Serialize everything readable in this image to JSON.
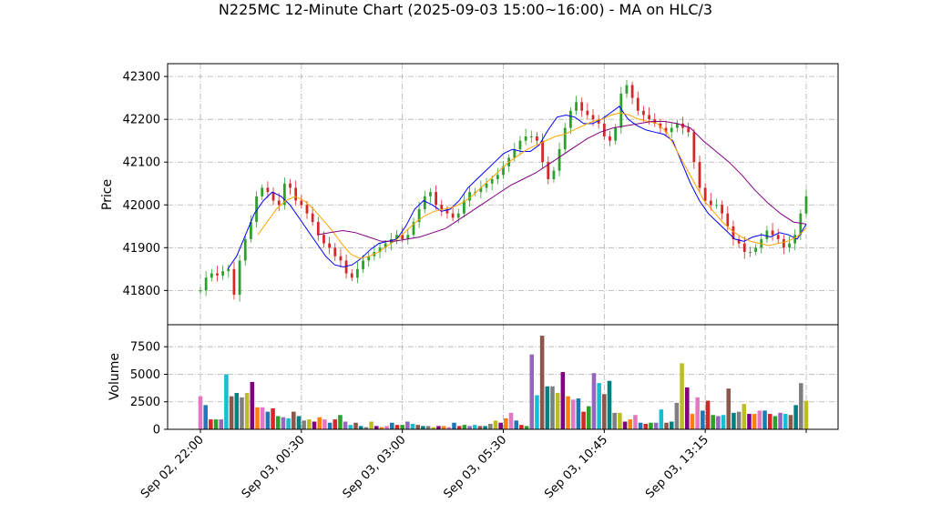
{
  "chart_data": {
    "type": "candlestick",
    "title": "N225MC 12-Minute Chart (2025-09-03 15:00~16:00) - MA on HLC/3",
    "price_panel": {
      "ylabel": "Price",
      "ylim": [
        41720,
        42330
      ],
      "yticks": [
        41800,
        41900,
        42000,
        42100,
        42200,
        42300
      ],
      "grid": true,
      "up_color": "#2ca02c",
      "down_color": "#d62728",
      "candles_hlc3_approx": [
        41800,
        41830,
        41840,
        41835,
        41845,
        41850,
        41790,
        41870,
        41920,
        41960,
        42020,
        42040,
        42030,
        42010,
        42000,
        42050,
        42040,
        42010,
        42000,
        41980,
        41960,
        41930,
        41910,
        41900,
        41880,
        41870,
        41840,
        41830,
        41850,
        41870,
        41880,
        41890,
        41900,
        41910,
        41920,
        41930,
        41920,
        41930,
        41960,
        41990,
        42020,
        42030,
        42000,
        41990,
        41980,
        41970,
        41980,
        42010,
        42030,
        42030,
        42040,
        42050,
        42060,
        42070,
        42090,
        42110,
        42130,
        42150,
        42160,
        42160,
        42150,
        42100,
        42060,
        42080,
        42130,
        42180,
        42220,
        42240,
        42220,
        42210,
        42200,
        42190,
        42160,
        42150,
        42180,
        42260,
        42280,
        42250,
        42220,
        42210,
        42200,
        42190,
        42180,
        42170,
        42180,
        42190,
        42180,
        42170,
        42100,
        42040,
        42010,
        42000,
        42000,
        41980,
        41950,
        41920,
        41910,
        41890,
        41890,
        41900,
        41920,
        41940,
        41930,
        41920,
        41900,
        41910,
        41930,
        41980,
        42020
      ],
      "series": [
        {
          "name": "",
          "color": "#0000ff",
          "values": [
            41850,
            41880,
            41930,
            41980,
            42010,
            42030,
            42020,
            42000,
            41970,
            41940,
            41910,
            41880,
            41860,
            41855,
            41860,
            41875,
            41895,
            41910,
            41915,
            41920,
            41950,
            41990,
            42010,
            42000,
            41985,
            41990,
            42010,
            42040,
            42060,
            42080,
            42100,
            42120,
            42130,
            42125,
            42125,
            42140,
            42175,
            42205,
            42210,
            42205,
            42190,
            42190,
            42200,
            42215,
            42230,
            42200,
            42185,
            42175,
            42170,
            42165,
            42150,
            42100,
            42050,
            42010,
            41980,
            41960,
            41940,
            41920,
            41915,
            41925,
            41930,
            41925,
            41935,
            41930,
            41920,
            41955
          ]
        },
        {
          "name": "",
          "color": "#ffa500",
          "values": [
            41930,
            41960,
            41990,
            42010,
            42020,
            42010,
            41990,
            41965,
            41940,
            41910,
            41885,
            41875,
            41880,
            41890,
            41905,
            41920,
            41940,
            41960,
            41975,
            41985,
            41990,
            41995,
            42005,
            42020,
            42040,
            42060,
            42080,
            42100,
            42115,
            42130,
            42140,
            42150,
            42160,
            42165,
            42175,
            42185,
            42195,
            42200,
            42210,
            42215,
            42210,
            42200,
            42195,
            42190,
            42170,
            42130,
            42090,
            42050,
            42010,
            41985,
            41960,
            41940,
            41925,
            41915,
            41910,
            41905,
            41910,
            41915,
            41925,
            41945
          ]
        },
        {
          "name": "",
          "color": "#800080",
          "values": [
            41930,
            41935,
            41940,
            41935,
            41925,
            41915,
            41915,
            41920,
            41925,
            41935,
            41945,
            41965,
            41985,
            42005,
            42025,
            42045,
            42060,
            42075,
            42095,
            42115,
            42135,
            42155,
            42170,
            42180,
            42185,
            42190,
            42195,
            42195,
            42190,
            42180,
            42150,
            42125,
            42100,
            42070,
            42035,
            42005,
            41980,
            41960,
            41955
          ]
        }
      ]
    },
    "volume_panel": {
      "ylabel": "Volume",
      "ylim": [
        0,
        9500
      ],
      "yticks": [
        0,
        2500,
        5000,
        7500
      ],
      "grid": true,
      "colors": [
        "#e377c2",
        "#1f77b4",
        "#d62728",
        "#2ca02c",
        "#9467bd",
        "#17becf",
        "#8c564b",
        "#008080",
        "#7f7f7f",
        "#bcbd22",
        "#800080",
        "#ff7f0e"
      ],
      "values": [
        3000,
        2200,
        900,
        900,
        900,
        5000,
        3000,
        3300,
        2900,
        3300,
        4300,
        2000,
        2000,
        1600,
        1900,
        1200,
        1100,
        1000,
        1600,
        1200,
        800,
        900,
        700,
        1100,
        900,
        600,
        900,
        1300,
        700,
        400,
        600,
        300,
        200,
        700,
        300,
        200,
        300,
        600,
        400,
        400,
        700,
        500,
        400,
        300,
        300,
        200,
        300,
        300,
        200,
        600,
        300,
        400,
        300,
        400,
        300,
        300,
        500,
        800,
        600,
        1000,
        1500,
        800,
        400,
        300,
        6800,
        3100,
        8500,
        3900,
        3900,
        3300,
        5200,
        3000,
        2700,
        2800,
        1600,
        2100,
        5100,
        4200,
        3200,
        4400,
        1500,
        1500,
        700,
        900,
        1300,
        600,
        500,
        600,
        600,
        1800,
        600,
        700,
        2400,
        6000,
        3800,
        1400,
        2900,
        1700,
        2600,
        1300,
        1200,
        1300,
        3700,
        1500,
        1600,
        2300,
        1400,
        1400,
        1700,
        1700,
        1400,
        1200,
        1500,
        1400,
        1300,
        2200,
        4200,
        2600
      ]
    },
    "x_ticks": [
      "Sep 02, 22:00",
      "Sep 03, 00:30",
      "Sep 03, 03:00",
      "Sep 03, 05:30",
      "Sep 03, 10:45",
      "Sep 03, 13:15"
    ]
  }
}
